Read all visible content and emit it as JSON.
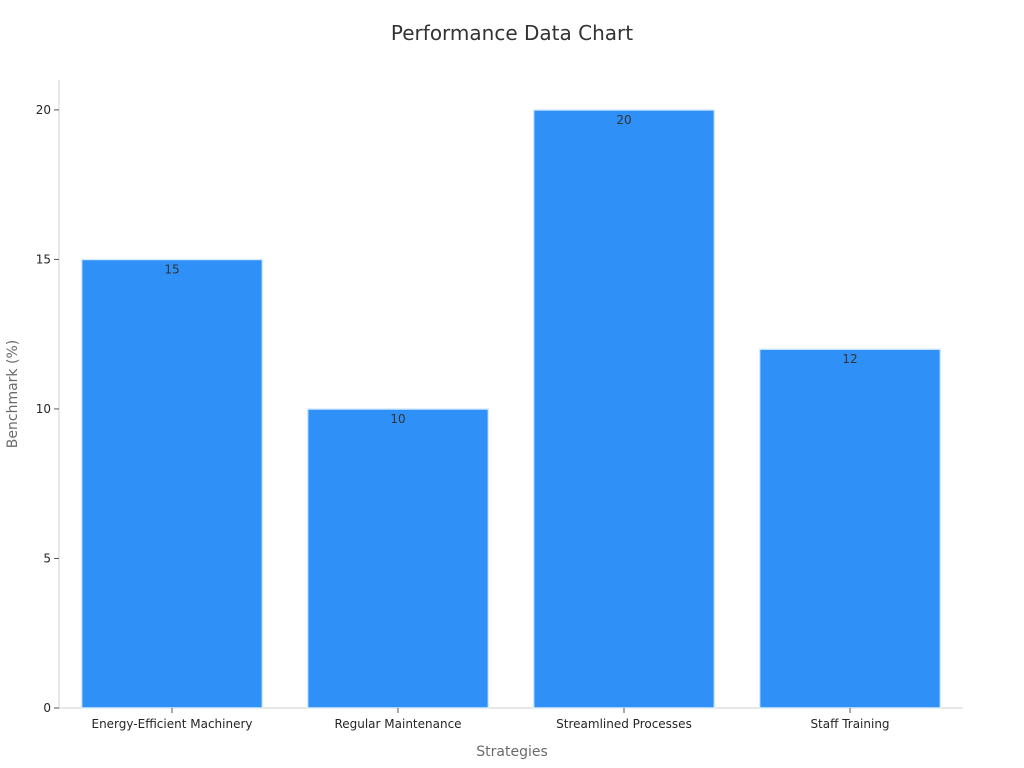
{
  "chart_data": {
    "type": "bar",
    "title": "Performance Data Chart",
    "xlabel": "Strategies",
    "ylabel": "Benchmark (%)",
    "categories": [
      "Energy-Efficient Machinery",
      "Regular Maintenance",
      "Streamlined Processes",
      "Staff Training"
    ],
    "values": [
      15,
      10,
      20,
      12
    ],
    "data_labels": [
      "15",
      "10",
      "20",
      "12"
    ],
    "yticks": [
      0,
      5,
      10,
      15,
      20
    ],
    "ylim": [
      0,
      21
    ],
    "grid": false,
    "legend": "none",
    "bar_color": "#2f91f8",
    "bar_edge_color": "#d9ecfe"
  }
}
